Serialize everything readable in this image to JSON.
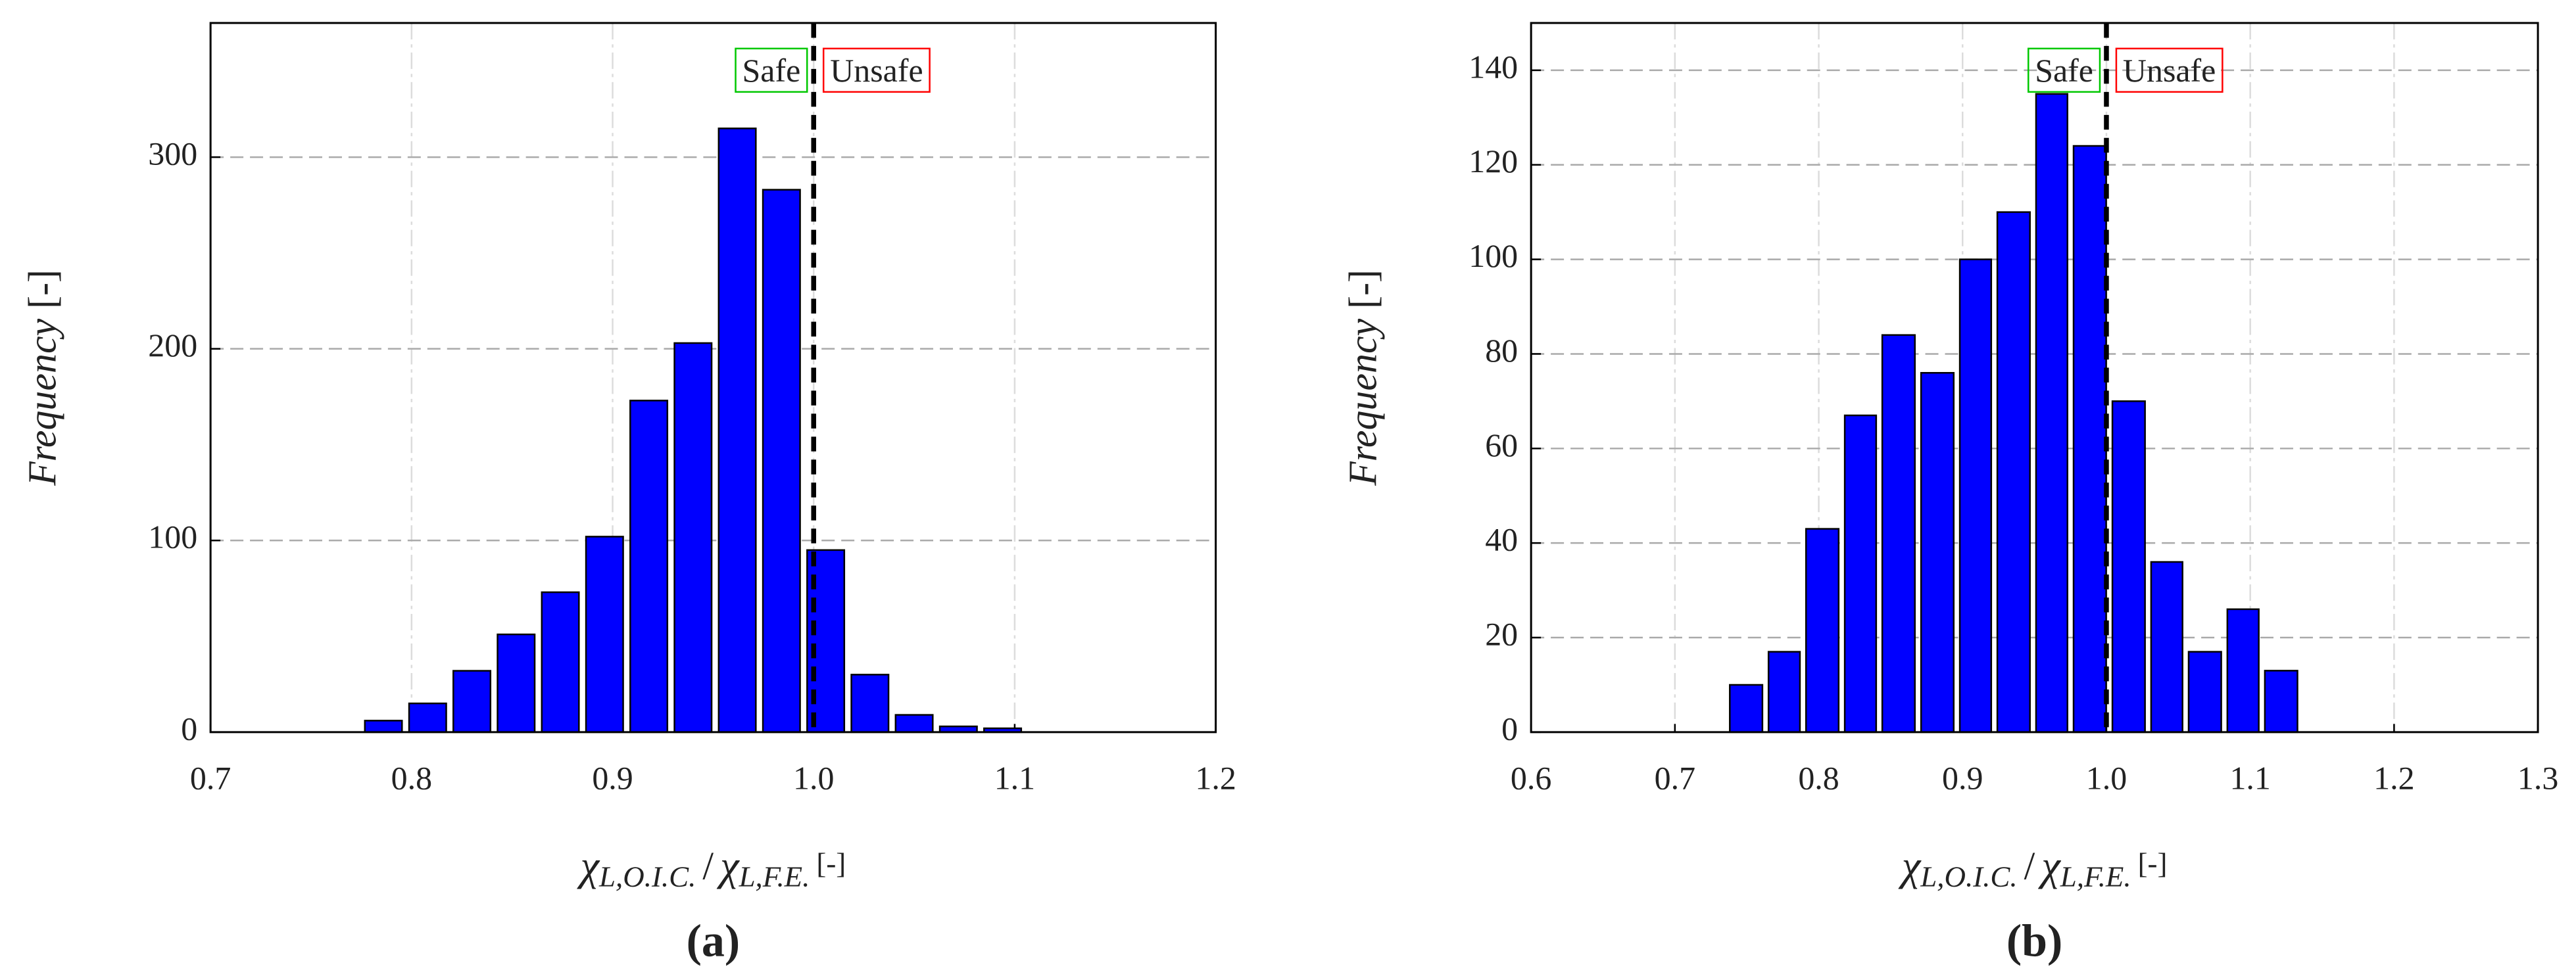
{
  "chart_data": [
    {
      "type": "histogram",
      "panel": "(a)",
      "color": "#0000ff",
      "bins": [
        0.775,
        0.797,
        0.819,
        0.841,
        0.863,
        0.885,
        0.907,
        0.929,
        0.951,
        0.973,
        0.995,
        1.017,
        1.039,
        1.061,
        1.083,
        1.105
      ],
      "values": [
        6,
        15,
        32,
        51,
        73,
        102,
        173,
        203,
        315,
        283,
        95,
        30,
        9,
        3,
        2
      ],
      "xlim": [
        0.7,
        1.2
      ],
      "xticks": [
        0.7,
        0.8,
        0.9,
        {
          "value": 1,
          "label": "1.0"
        },
        1.1,
        1.2
      ],
      "ylim": [
        0,
        370
      ],
      "yticks": [
        0,
        100,
        200,
        300
      ],
      "ylabel": [
        "Frequency",
        "[-]"
      ],
      "xlabel": [
        "χ",
        "L,O.I.C.",
        "/",
        "χ",
        "L,F.E.",
        "[-]"
      ],
      "vline": 1,
      "annotations": [
        {
          "text": "Safe",
          "color": "#00c800"
        },
        {
          "text": "Unsafe",
          "color": "#ff0000"
        }
      ],
      "grid": true
    },
    {
      "type": "histogram",
      "panel": "(b)",
      "color": "#0000ff",
      "bins": [
        0.736,
        0.763,
        0.789,
        0.816,
        0.842,
        0.869,
        0.896,
        0.922,
        0.949,
        0.975,
        1.002,
        1.029,
        1.055,
        1.082,
        1.108,
        1.135
      ],
      "values": [
        10,
        17,
        43,
        67,
        84,
        76,
        100,
        110,
        135,
        124,
        70,
        36,
        17,
        26,
        13
      ],
      "xlim": [
        0.6,
        1.3
      ],
      "xticks": [
        0.6,
        0.7,
        0.8,
        0.9,
        {
          "value": 1,
          "label": "1.0"
        },
        1.1,
        1.2,
        1.3
      ],
      "ylim": [
        0,
        150
      ],
      "yticks": [
        0,
        20,
        40,
        60,
        80,
        100,
        120,
        140
      ],
      "ylabel": [
        "Frequency",
        "[-]"
      ],
      "xlabel": [
        "χ",
        "L,O.I.C.",
        "/",
        "χ",
        "L,F.E.",
        "[-]"
      ],
      "vline": 1,
      "annotations": [
        {
          "text": "Safe",
          "color": "#00c800"
        },
        {
          "text": "Unsafe",
          "color": "#ff0000"
        }
      ],
      "grid": true
    }
  ]
}
